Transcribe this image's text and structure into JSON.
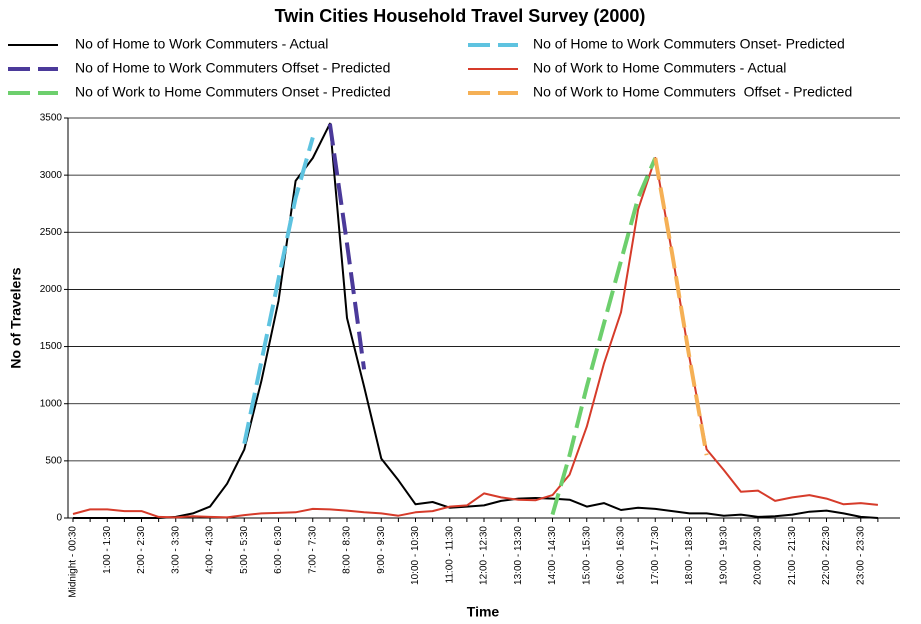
{
  "chart_data": {
    "type": "line",
    "title": "Twin Cities Household Travel Survey (2000)",
    "x_label": "Time",
    "y_label": "No of Travelers",
    "categories": [
      "Midnight - 00:30",
      null,
      "1:00 - 1:30",
      null,
      "2:00 - 2:30",
      null,
      "3:00 - 3:30",
      null,
      "4:00 - 4:30",
      null,
      "5:00 - 5:30",
      null,
      "6:00 - 6:30",
      null,
      "7:00 - 7:30",
      null,
      "8:00 - 8:30",
      null,
      "9:00 - 9:30",
      null,
      "10:00 - 10:30",
      null,
      "11:00 - 11:30",
      null,
      "12:00 - 12:30",
      null,
      "13:00 - 13:30",
      null,
      "14:00 - 14:30",
      null,
      "15:00 - 15:30",
      null,
      "16:00 - 16:30",
      null,
      "17:00 - 17:30",
      null,
      "18:00 - 18:30",
      null,
      "19:00 - 19:30",
      null,
      "20:00 - 20:30",
      null,
      "21:00 - 21:30",
      null,
      "22:00 - 22:30",
      null,
      "23:00 - 23:30",
      null
    ],
    "ylim": [
      0,
      3500
    ],
    "yticks": [
      0,
      500,
      1000,
      1500,
      2000,
      2500,
      3000,
      3500
    ],
    "grid": true,
    "series": [
      {
        "name": "No of Home to Work Commuters - Actual",
        "color": "#000000",
        "dash": false,
        "values": [
          0,
          0,
          0,
          0,
          0,
          0,
          10,
          40,
          100,
          300,
          600,
          1200,
          1900,
          2950,
          3150,
          3450,
          1750,
          1150,
          520,
          330,
          120,
          140,
          90,
          100,
          110,
          150,
          170,
          175,
          170,
          160,
          100,
          130,
          70,
          90,
          80,
          60,
          40,
          40,
          20,
          30,
          10,
          15,
          30,
          55,
          65,
          40,
          10,
          0
        ]
      },
      {
        "name": "No of Home to Work Commuters Onset- Predicted",
        "color": "#5ec3e0",
        "dash": true,
        "values": [
          null,
          null,
          null,
          null,
          null,
          null,
          null,
          null,
          null,
          null,
          650,
          1370,
          2090,
          2800,
          3330,
          null,
          null,
          null,
          null,
          null,
          null,
          null,
          null,
          null,
          null,
          null,
          null,
          null,
          null,
          null,
          null,
          null,
          null,
          null,
          null,
          null,
          null,
          null,
          null,
          null,
          null,
          null,
          null,
          null,
          null,
          null,
          null,
          null
        ]
      },
      {
        "name": "No of Home to Work Commuters Offset - Predicted",
        "color": "#4b3a9a",
        "dash": true,
        "values": [
          null,
          null,
          null,
          null,
          null,
          null,
          null,
          null,
          null,
          null,
          null,
          null,
          null,
          null,
          null,
          3450,
          2400,
          1300,
          null,
          null,
          null,
          null,
          null,
          null,
          null,
          null,
          null,
          null,
          null,
          null,
          null,
          null,
          null,
          null,
          null,
          null,
          null,
          null,
          null,
          null,
          null,
          null,
          null,
          null,
          null,
          null,
          null,
          null
        ]
      },
      {
        "name": "No of Work to Home Commuters - Actual",
        "color": "#d63b2a",
        "dash": false,
        "values": [
          35,
          75,
          75,
          60,
          60,
          10,
          5,
          15,
          10,
          5,
          25,
          40,
          45,
          50,
          80,
          75,
          65,
          50,
          40,
          20,
          50,
          60,
          100,
          110,
          215,
          180,
          160,
          155,
          200,
          380,
          800,
          1350,
          1800,
          2700,
          3150,
          2300,
          1400,
          600,
          420,
          230,
          240,
          150,
          180,
          200,
          170,
          120,
          130,
          115
        ]
      },
      {
        "name": "No of Work to Home Commuters Onset - Predicted",
        "color": "#6dcf6d",
        "dash": true,
        "values": [
          null,
          null,
          null,
          null,
          null,
          null,
          null,
          null,
          null,
          null,
          null,
          null,
          null,
          null,
          null,
          null,
          null,
          null,
          null,
          null,
          null,
          null,
          null,
          null,
          null,
          null,
          null,
          null,
          30,
          550,
          1150,
          1700,
          2250,
          2800,
          3150,
          null,
          null,
          null,
          null,
          null,
          null,
          null,
          null,
          null,
          null,
          null,
          null,
          null
        ]
      },
      {
        "name": "No of Work to Home Commuters  Offset - Predicted",
        "color": "#f5b055",
        "dash": true,
        "values": [
          null,
          null,
          null,
          null,
          null,
          null,
          null,
          null,
          null,
          null,
          null,
          null,
          null,
          null,
          null,
          null,
          null,
          null,
          null,
          null,
          null,
          null,
          null,
          null,
          null,
          null,
          null,
          null,
          null,
          null,
          null,
          null,
          null,
          null,
          3150,
          2300,
          1400,
          550,
          null,
          null,
          null,
          null,
          null,
          null,
          null,
          null,
          null,
          null
        ]
      }
    ]
  }
}
